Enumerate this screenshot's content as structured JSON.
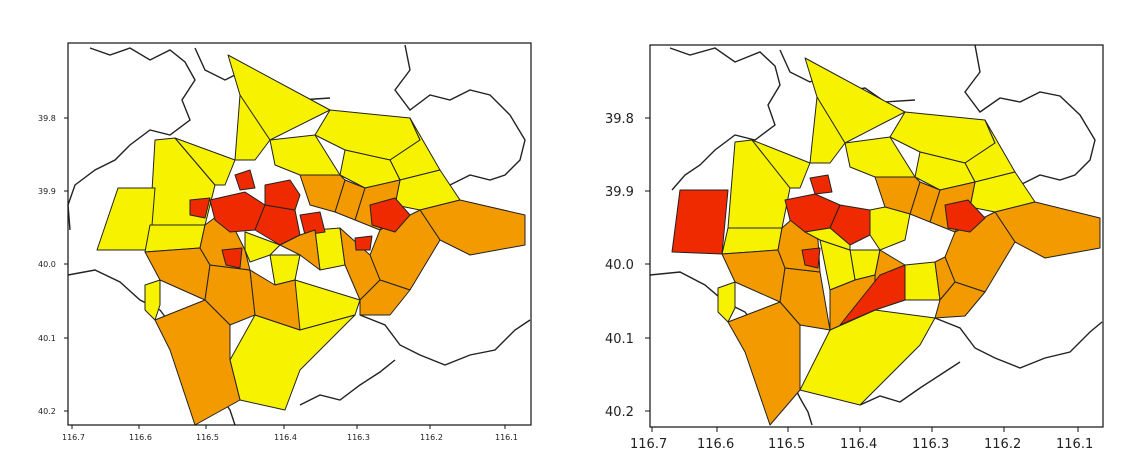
{
  "colors": {
    "low": "#f7f200",
    "medium": "#f29a00",
    "high": "#f02a00",
    "border": "#222222",
    "background": "#ffffff"
  },
  "panels": [
    {
      "id": "left",
      "y_ticks": [
        "39.8",
        "39.9",
        "40.0",
        "40.1",
        "40.2"
      ],
      "x_ticks": [
        "116.7",
        "116.6",
        "116.5",
        "116.4",
        "116.3",
        "116.2",
        "116.1"
      ]
    },
    {
      "id": "right",
      "y_ticks": [
        "39.8",
        "39.9",
        "40.0",
        "40.1",
        "40.2"
      ],
      "x_ticks": [
        "116.7",
        "116.6",
        "116.5",
        "116.4",
        "116.3",
        "116.2",
        "116.1"
      ]
    }
  ]
}
